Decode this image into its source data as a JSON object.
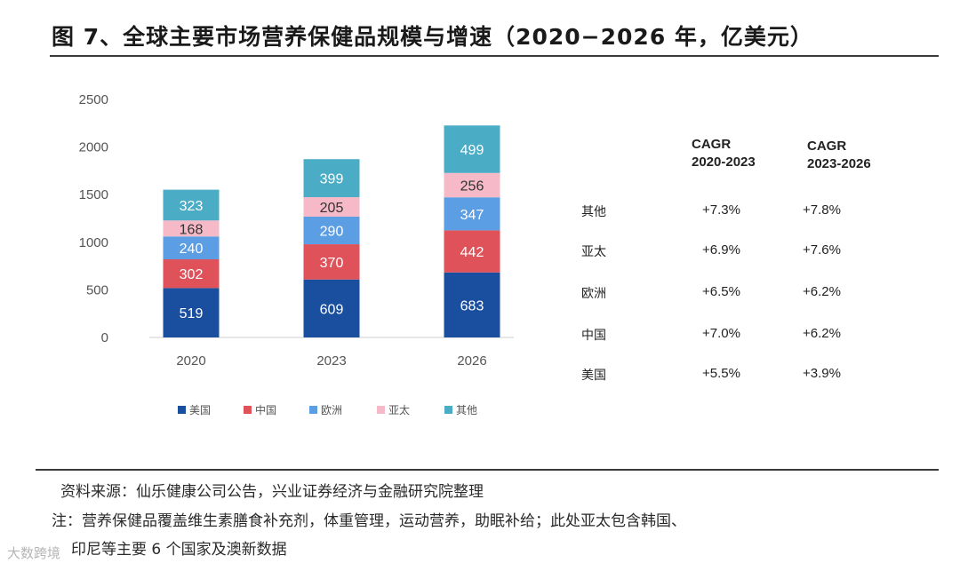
{
  "figure": {
    "title": "图 7、全球主要市场营养保健品规模与增速（2020−2026 年，亿美元）"
  },
  "chart_data": {
    "type": "bar",
    "stacked": true,
    "title": "全球主要市场营养保健品规模与增速",
    "unit": "亿美元",
    "categories": [
      "2020",
      "2023",
      "2026"
    ],
    "ylim": [
      0,
      2500
    ],
    "yticks": [
      0,
      500,
      1000,
      1500,
      2000,
      2500
    ],
    "series": [
      {
        "name": "美国",
        "color": "#1a4fa0",
        "values": [
          519,
          609,
          683
        ]
      },
      {
        "name": "中国",
        "color": "#e0525a",
        "values": [
          302,
          370,
          442
        ]
      },
      {
        "name": "欧洲",
        "color": "#5b9ee3",
        "values": [
          240,
          290,
          347
        ]
      },
      {
        "name": "亚太",
        "color": "#f5b9c8",
        "values": [
          168,
          205,
          256
        ]
      },
      {
        "name": "其他",
        "color": "#4bacc6",
        "values": [
          323,
          399,
          499
        ]
      }
    ],
    "legend_position": "bottom"
  },
  "cagr": {
    "headers": [
      [
        "CAGR",
        "2020-2023"
      ],
      [
        "CAGR",
        "2023-2026"
      ]
    ],
    "rows": [
      {
        "region": "其他",
        "v1": "+7.3%",
        "v2": "+7.8%"
      },
      {
        "region": "亚太",
        "v1": "+6.9%",
        "v2": "+7.6%"
      },
      {
        "region": "欧洲",
        "v1": "+6.5%",
        "v2": "+6.2%"
      },
      {
        "region": "中国",
        "v1": "+7.0%",
        "v2": "+6.2%"
      },
      {
        "region": "美国",
        "v1": "+5.5%",
        "v2": "+3.9%"
      }
    ]
  },
  "footer": {
    "source": "资料来源：仙乐健康公司公告，兴业证券经济与金融研究院整理",
    "note_line1": "注：营养保健品覆盖维生素膳食补充剂，体重管理，运动营养，助眠补给；此处亚太包含韩国、",
    "note_line2": "印尼等主要 6 个国家及澳新数据"
  },
  "watermark": "大数跨境"
}
